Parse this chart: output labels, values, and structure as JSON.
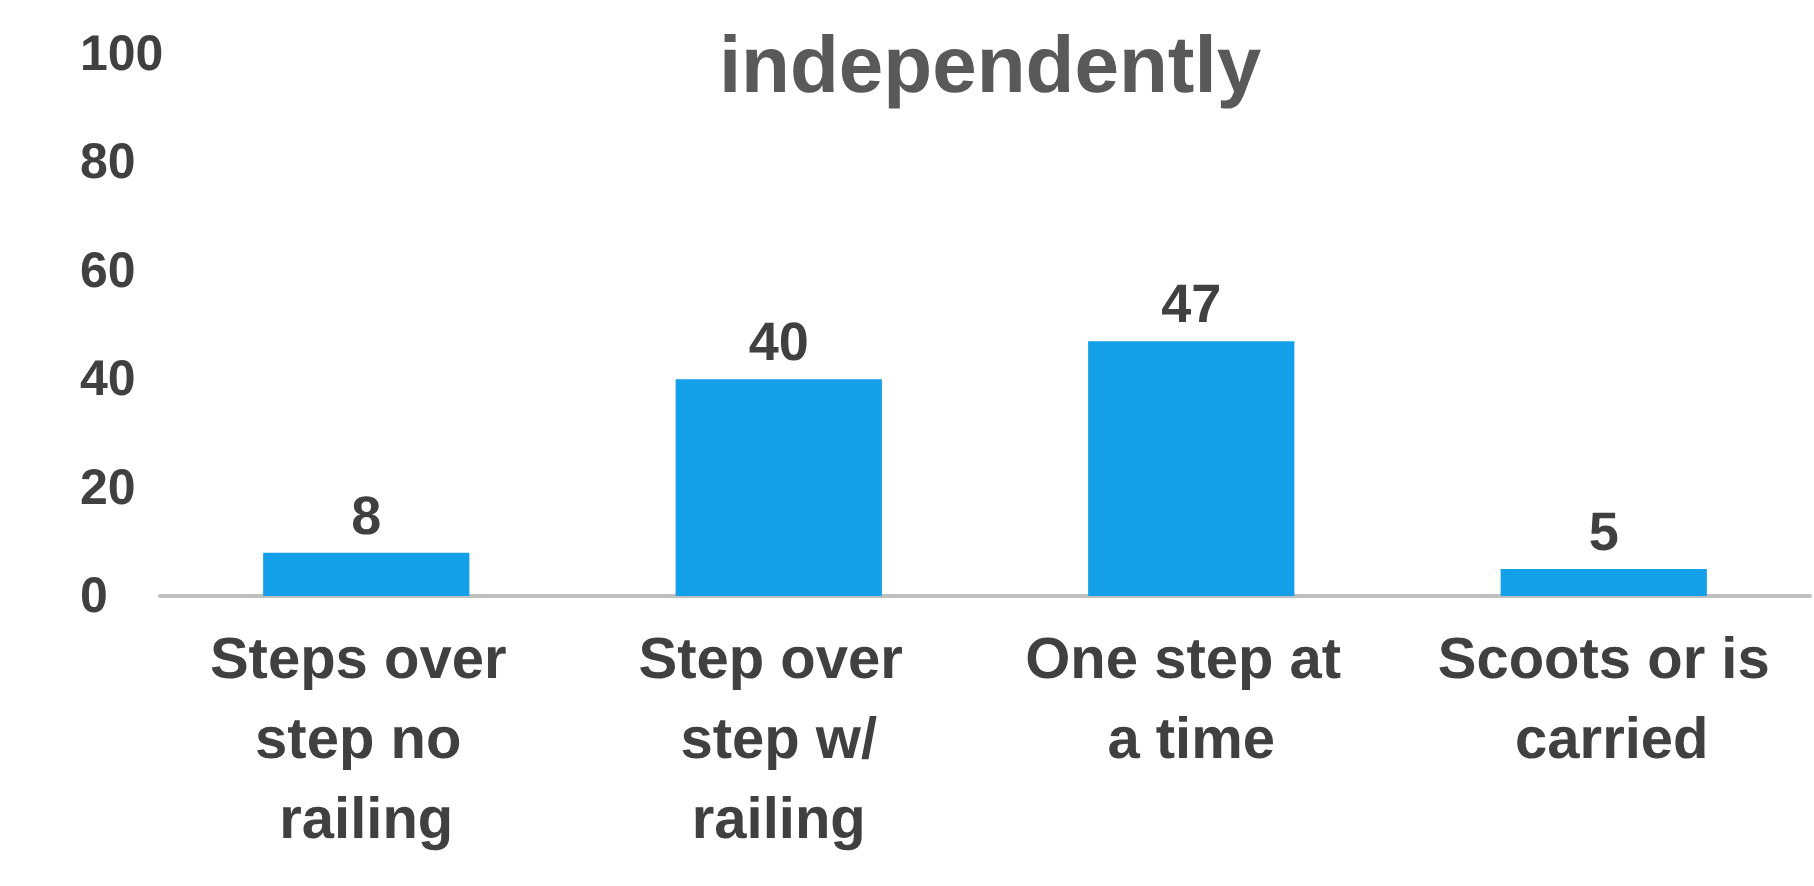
{
  "chart_data": {
    "type": "bar",
    "title": "independently",
    "categories": [
      "Steps over step no railing",
      "Step over step w/railing",
      "One step at a time",
      "Scoots or is carried"
    ],
    "values": [
      8,
      40,
      47,
      5
    ],
    "color": "#14a0e8",
    "ylim": [
      0,
      100
    ],
    "yticks": [
      0,
      20,
      40,
      60,
      80,
      100
    ],
    "grid": false,
    "data_labels": true
  }
}
